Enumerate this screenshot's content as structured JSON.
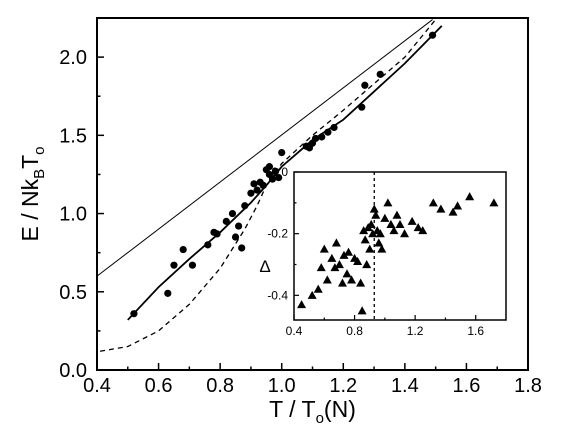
{
  "chart_data": [
    {
      "type": "scatter",
      "xlabel": {
        "pre": "T / T",
        "sub": "o",
        "post": "(N)"
      },
      "ylabel": {
        "pre": "E / Nk",
        "sub1": "B",
        "mid": "T",
        "sub2": "o"
      },
      "xlim": [
        0.4,
        1.8
      ],
      "ylim": [
        0.0,
        2.25
      ],
      "xticks": [
        "0.4",
        "0.6",
        "0.8",
        "1.0",
        "1.2",
        "1.4",
        "1.6",
        "1.8"
      ],
      "yticks": [
        "0.0",
        "0.5",
        "1.0",
        "1.5",
        "2.0"
      ],
      "grid": false,
      "series": [
        {
          "style": "points-circle",
          "points": [
            [
              0.52,
              0.36
            ],
            [
              0.63,
              0.49
            ],
            [
              0.65,
              0.67
            ],
            [
              0.68,
              0.77
            ],
            [
              0.71,
              0.67
            ],
            [
              0.76,
              0.8
            ],
            [
              0.78,
              0.88
            ],
            [
              0.79,
              0.87
            ],
            [
              0.82,
              0.95
            ],
            [
              0.84,
              1.0
            ],
            [
              0.85,
              0.85
            ],
            [
              0.86,
              0.92
            ],
            [
              0.87,
              0.78
            ],
            [
              0.88,
              1.05
            ],
            [
              0.9,
              1.13
            ],
            [
              0.91,
              1.19
            ],
            [
              0.92,
              1.15
            ],
            [
              0.93,
              1.2
            ],
            [
              0.94,
              1.18
            ],
            [
              0.95,
              1.28
            ],
            [
              0.96,
              1.3
            ],
            [
              0.97,
              1.22
            ],
            [
              0.98,
              1.27
            ],
            [
              0.99,
              1.23
            ],
            [
              1.0,
              1.39
            ],
            [
              1.08,
              1.43
            ],
            [
              1.1,
              1.45
            ],
            [
              1.11,
              1.48
            ],
            [
              1.13,
              1.49
            ],
            [
              1.15,
              1.52
            ],
            [
              1.17,
              1.55
            ],
            [
              1.26,
              1.68
            ],
            [
              1.27,
              1.82
            ],
            [
              1.32,
              1.89
            ],
            [
              1.49,
              2.14
            ],
            [
              0.96,
              1.25
            ],
            [
              1.09,
              1.42
            ]
          ]
        },
        {
          "style": "solid-thick",
          "points": [
            [
              0.5,
              0.32
            ],
            [
              0.6,
              0.53
            ],
            [
              0.7,
              0.71
            ],
            [
              0.8,
              0.88
            ],
            [
              0.9,
              1.07
            ],
            [
              0.95,
              1.18
            ],
            [
              1.0,
              1.3
            ],
            [
              1.1,
              1.47
            ],
            [
              1.2,
              1.6
            ],
            [
              1.3,
              1.78
            ],
            [
              1.4,
              1.96
            ],
            [
              1.52,
              2.2
            ]
          ]
        },
        {
          "style": "solid-thin",
          "points": [
            [
              0.4,
              0.6
            ],
            [
              1.49,
              2.24
            ]
          ]
        },
        {
          "style": "dashed",
          "points": [
            [
              0.41,
              0.12
            ],
            [
              0.5,
              0.15
            ],
            [
              0.6,
              0.25
            ],
            [
              0.7,
              0.42
            ],
            [
              0.8,
              0.65
            ],
            [
              0.88,
              0.9
            ],
            [
              0.92,
              1.05
            ],
            [
              0.95,
              1.18
            ],
            [
              1.0,
              1.32
            ],
            [
              1.1,
              1.5
            ],
            [
              1.2,
              1.66
            ],
            [
              1.3,
              1.83
            ],
            [
              1.4,
              2.0
            ],
            [
              1.5,
              2.24
            ]
          ]
        }
      ]
    },
    {
      "type": "scatter",
      "inset": true,
      "ylabel": "Δ",
      "xlim": [
        0.4,
        1.8
      ],
      "ylim": [
        -0.48,
        0.0
      ],
      "xticks": [
        "0.4",
        "0.8",
        "1.2",
        "1.6"
      ],
      "yticks": [
        "0.0",
        "-0.2",
        "-0.4"
      ],
      "vline_x": 0.93,
      "series": [
        {
          "style": "points-triangle",
          "points": [
            [
              0.45,
              -0.43
            ],
            [
              0.52,
              -0.4
            ],
            [
              0.56,
              -0.38
            ],
            [
              0.58,
              -0.31
            ],
            [
              0.6,
              -0.25
            ],
            [
              0.62,
              -0.35
            ],
            [
              0.65,
              -0.28
            ],
            [
              0.67,
              -0.31
            ],
            [
              0.68,
              -0.23
            ],
            [
              0.7,
              -0.3
            ],
            [
              0.72,
              -0.36
            ],
            [
              0.73,
              -0.27
            ],
            [
              0.75,
              -0.33
            ],
            [
              0.76,
              -0.26
            ],
            [
              0.78,
              -0.35
            ],
            [
              0.8,
              -0.28
            ],
            [
              0.82,
              -0.29
            ],
            [
              0.84,
              -0.36
            ],
            [
              0.85,
              -0.45
            ],
            [
              0.86,
              -0.19
            ],
            [
              0.87,
              -0.22
            ],
            [
              0.88,
              -0.3
            ],
            [
              0.89,
              -0.18
            ],
            [
              0.9,
              -0.25
            ],
            [
              0.91,
              -0.17
            ],
            [
              0.92,
              -0.2
            ],
            [
              0.93,
              -0.12
            ],
            [
              0.94,
              -0.14
            ],
            [
              0.95,
              -0.19
            ],
            [
              0.96,
              -0.23
            ],
            [
              0.97,
              -0.2
            ],
            [
              0.98,
              -0.25
            ],
            [
              1.0,
              -0.15
            ],
            [
              1.02,
              -0.1
            ],
            [
              1.04,
              -0.17
            ],
            [
              1.06,
              -0.19
            ],
            [
              1.08,
              -0.14
            ],
            [
              1.1,
              -0.17
            ],
            [
              1.13,
              -0.2
            ],
            [
              1.18,
              -0.16
            ],
            [
              1.22,
              -0.18
            ],
            [
              1.25,
              -0.19
            ],
            [
              1.32,
              -0.1
            ],
            [
              1.37,
              -0.12
            ],
            [
              1.45,
              -0.13
            ],
            [
              1.48,
              -0.11
            ],
            [
              1.56,
              -0.08
            ],
            [
              1.72,
              -0.1
            ]
          ]
        }
      ]
    }
  ]
}
